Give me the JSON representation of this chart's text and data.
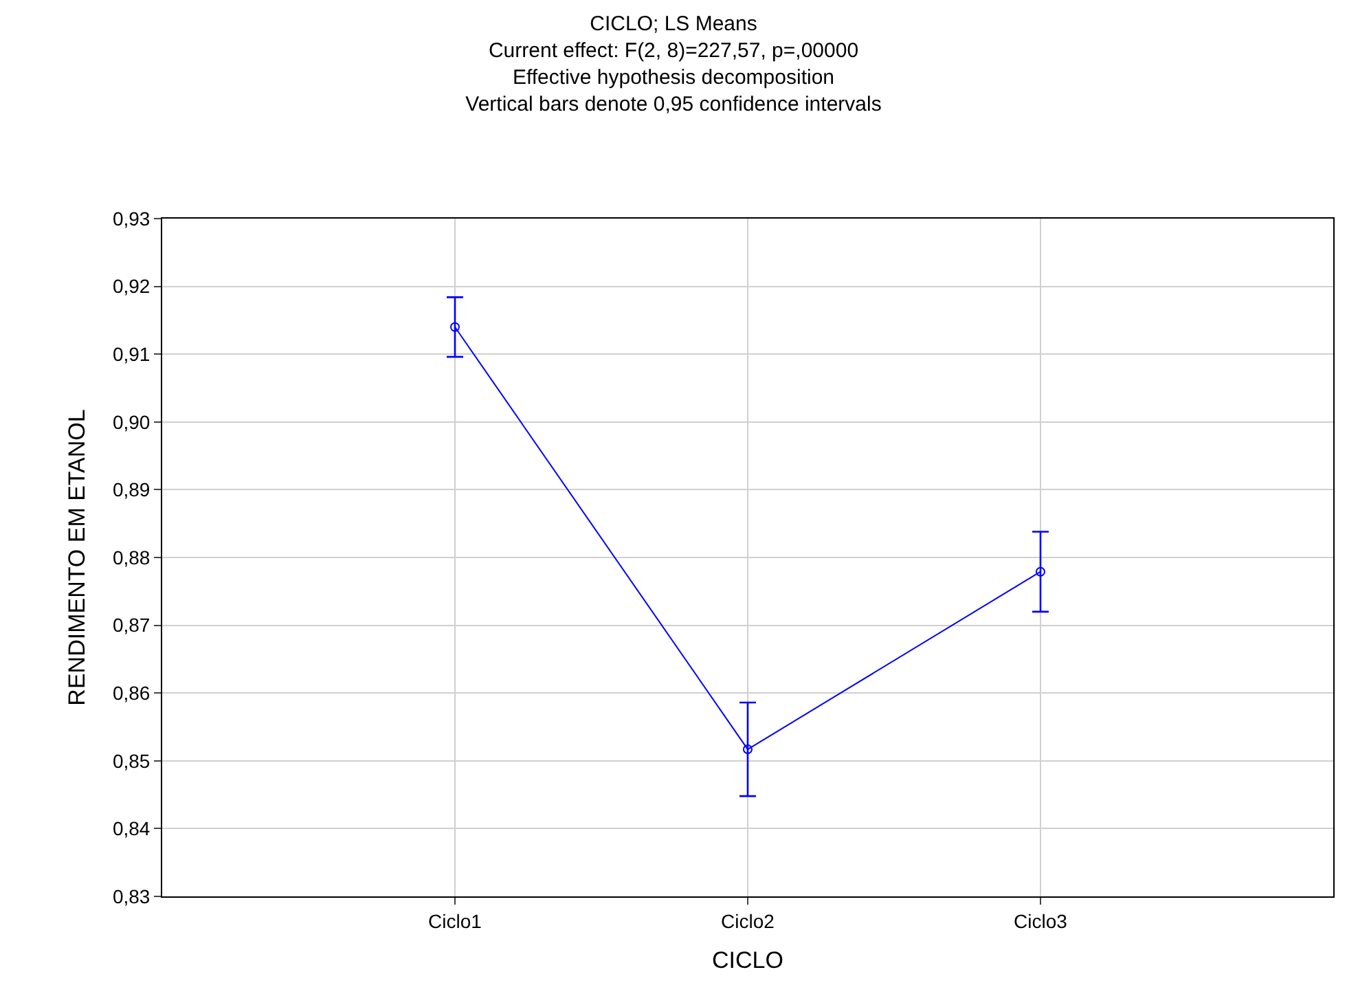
{
  "chart_data": {
    "type": "line",
    "title": "CICLO; LS Means\nCurrent effect: F(2, 8)=227,57, p=,00000\nEffective hypothesis decomposition\nVertical bars denote 0,95 confidence intervals",
    "xlabel": "CICLO",
    "ylabel": "RENDIMENTO EM ETANOL",
    "categories": [
      "Ciclo1",
      "Ciclo2",
      "Ciclo3"
    ],
    "series": [
      {
        "color": "#0000ff",
        "values": [
          0.914,
          0.8517,
          0.8779
        ],
        "errors": [
          0.0044,
          0.0069,
          0.0059
        ]
      }
    ],
    "ylim": [
      0.83,
      0.93
    ],
    "yticks": [
      {
        "value": 0.83,
        "label": "0,83"
      },
      {
        "value": 0.84,
        "label": "0,84"
      },
      {
        "value": 0.85,
        "label": "0,85"
      },
      {
        "value": 0.86,
        "label": "0,86"
      },
      {
        "value": 0.87,
        "label": "0,87"
      },
      {
        "value": 0.88,
        "label": "0,88"
      },
      {
        "value": 0.89,
        "label": "0,89"
      },
      {
        "value": 0.9,
        "label": "0,90"
      },
      {
        "value": 0.91,
        "label": "0,91"
      },
      {
        "value": 0.92,
        "label": "0,92"
      },
      {
        "value": 0.93,
        "label": "0,93"
      }
    ],
    "grid": true,
    "marker": "circle",
    "line_style": "solid"
  }
}
